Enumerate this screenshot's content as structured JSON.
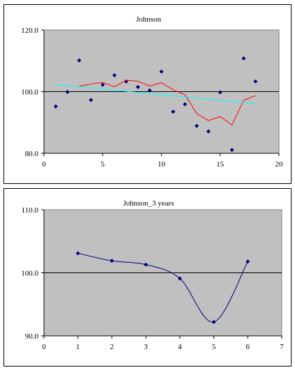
{
  "chart_data": [
    {
      "type": "scatter",
      "title": "Johnson",
      "xlim": [
        0,
        20
      ],
      "ylim": [
        80,
        120
      ],
      "x_ticks": [
        0,
        5,
        10,
        15,
        20
      ],
      "y_ticks": [
        80.0,
        100.0,
        120.0
      ],
      "x_tick_labels": [
        "0",
        "5",
        "10",
        "15",
        "20"
      ],
      "y_tick_labels": [
        "80.0",
        "100.0",
        "120.0"
      ],
      "reference_line": 100,
      "grid": false,
      "background": "#c0c0c0",
      "series": [
        {
          "kind": "points",
          "color": "#000080",
          "x": [
            1,
            2,
            3,
            4,
            5,
            6,
            7,
            8,
            9,
            10,
            11,
            12,
            13,
            14,
            15,
            16,
            17,
            18
          ],
          "y": [
            95.2,
            99.9,
            110.1,
            97.3,
            102.2,
            105.3,
            103.3,
            101.5,
            100.4,
            106.5,
            93.5,
            95.9,
            88.9,
            87.1,
            99.8,
            81.1,
            110.8,
            103.3
          ]
        },
        {
          "kind": "moving-average",
          "color": "#ff0000",
          "x": [
            3,
            4,
            5,
            6,
            7,
            8,
            9,
            10,
            11,
            12,
            13,
            14,
            15,
            16,
            17,
            18
          ],
          "y": [
            101.7,
            102.5,
            103.0,
            101.6,
            103.7,
            103.4,
            101.8,
            102.9,
            100.6,
            99.0,
            92.9,
            90.6,
            91.9,
            89.2,
            97.2,
            98.7
          ]
        },
        {
          "kind": "trend",
          "color": "#00ffff",
          "x": [
            1,
            18
          ],
          "y": [
            102.3,
            96.1
          ]
        }
      ]
    },
    {
      "type": "line",
      "title": "Johnson_3 years",
      "xlim": [
        0,
        7
      ],
      "ylim": [
        90,
        110
      ],
      "x_ticks": [
        0,
        1,
        2,
        3,
        4,
        5,
        6,
        7
      ],
      "y_ticks": [
        90.0,
        100.0,
        110.0
      ],
      "x_tick_labels": [
        "0",
        "1",
        "2",
        "3",
        "4",
        "5",
        "6",
        "7"
      ],
      "y_tick_labels": [
        "90.0",
        "100.0",
        "110.0"
      ],
      "reference_line": 100,
      "grid": false,
      "background": "#c0c0c0",
      "series": [
        {
          "kind": "smooth-line-with-markers",
          "color": "#000080",
          "x": [
            1,
            2,
            3,
            4,
            5,
            6
          ],
          "y": [
            103.1,
            101.9,
            101.3,
            99.1,
            92.2,
            101.8
          ]
        }
      ]
    }
  ]
}
